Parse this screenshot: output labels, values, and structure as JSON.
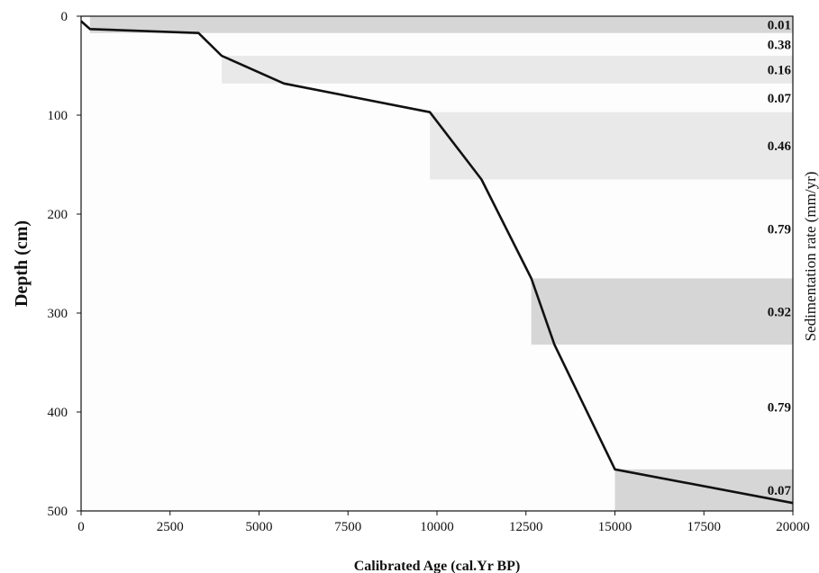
{
  "chart_data": {
    "type": "line",
    "title": "",
    "xlabel": "Calibrated Age (cal.Yr BP)",
    "ylabel": "Depth (cm)",
    "right_label": "Sedimentation rate (mm/yr)",
    "xlim": [
      0,
      20000
    ],
    "ylim": [
      0,
      500
    ],
    "y_inverted": true,
    "x_ticks": [
      0,
      2500,
      5000,
      7500,
      10000,
      12500,
      15000,
      17500,
      20000
    ],
    "y_ticks": [
      0,
      100,
      200,
      300,
      400,
      500
    ],
    "colors": {
      "line": "#111111",
      "band_dark": "#d6d6d6",
      "band_light": "#e9e9e9",
      "plot_bg": "#fdfdfd"
    },
    "series": [
      {
        "x": [
          0,
          250,
          3300,
          3950,
          5700,
          9800,
          11250,
          12650,
          13300,
          15000,
          20000
        ],
        "y": [
          5,
          13,
          17,
          40,
          68,
          97,
          165,
          265,
          332,
          458,
          492
        ]
      }
    ],
    "rate_bands": [
      {
        "label": "0.01",
        "y_from": 0,
        "y_to": 17,
        "x_from": 250,
        "shade": "dark"
      },
      {
        "label": "0.38",
        "y_from": 17,
        "y_to": 40,
        "shade": "none"
      },
      {
        "label": "0.16",
        "y_from": 40,
        "y_to": 68,
        "x_from": 3950,
        "shade": "light"
      },
      {
        "label": "0.07",
        "y_from": 68,
        "y_to": 97,
        "shade": "none"
      },
      {
        "label": "0.46",
        "y_from": 97,
        "y_to": 165,
        "x_from": 9800,
        "shade": "light"
      },
      {
        "label": "0.79",
        "y_from": 165,
        "y_to": 265,
        "shade": "none"
      },
      {
        "label": "0.92",
        "y_from": 265,
        "y_to": 332,
        "x_from": 12650,
        "shade": "dark"
      },
      {
        "label": "0.79",
        "y_from": 332,
        "y_to": 458,
        "shade": "none"
      },
      {
        "label": "0.07",
        "y_from": 458,
        "y_to": 500,
        "x_from": 15000,
        "shade": "dark"
      }
    ]
  }
}
